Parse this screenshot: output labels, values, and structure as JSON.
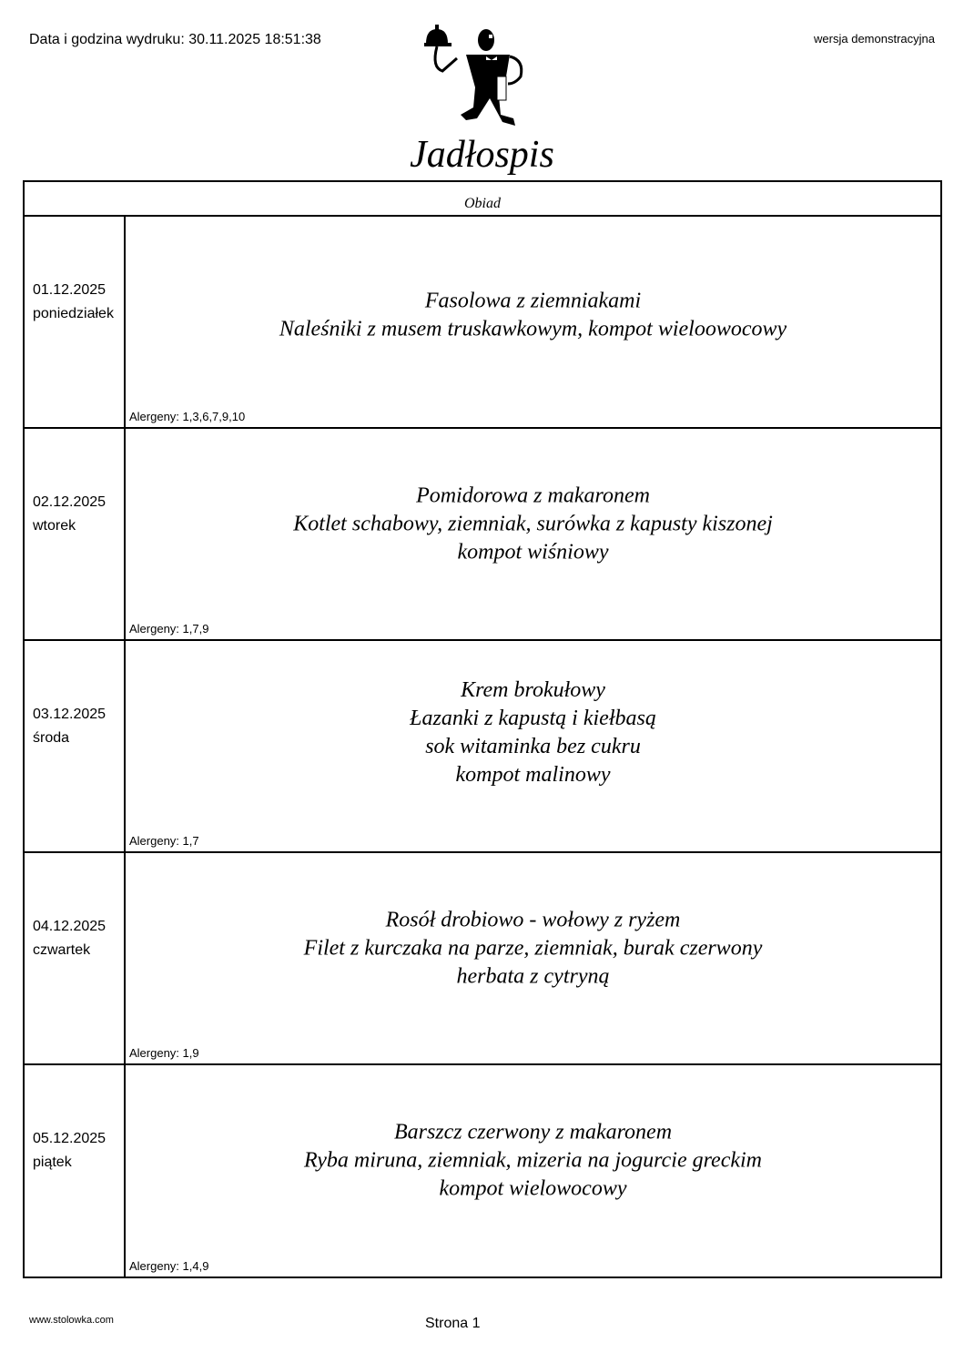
{
  "header": {
    "print_date": "Data i godzina wydruku: 30.11.2025 18:51:38",
    "version": "wersja demonstracyjna",
    "logo": "waiter-logo",
    "title": "Jadłospis"
  },
  "table": {
    "column_header": "Obiad",
    "rows": [
      {
        "date": "01.12.2025",
        "day": "poniedziałek",
        "menu": [
          "Fasolowa z ziemniakami",
          "Naleśniki z musem truskawkowym, kompot wieloowocowy"
        ],
        "allergens": "Alergeny: 1,3,6,7,9,10"
      },
      {
        "date": "02.12.2025",
        "day": "wtorek",
        "menu": [
          "Pomidorowa z makaronem",
          "Kotlet schabowy, ziemniak, surówka z kapusty kiszonej",
          "kompot wiśniowy"
        ],
        "allergens": "Alergeny: 1,7,9"
      },
      {
        "date": "03.12.2025",
        "day": "środa",
        "menu": [
          "Krem brokułowy",
          "Łazanki z kapustą i kiełbasą",
          "sok witaminka bez cukru",
          "kompot malinowy"
        ],
        "allergens": "Alergeny: 1,7"
      },
      {
        "date": "04.12.2025",
        "day": "czwartek",
        "menu": [
          "Rosół drobiowo - wołowy z ryżem",
          "Filet z kurczaka na parze, ziemniak, burak czerwony",
          "herbata z cytryną"
        ],
        "allergens": "Alergeny: 1,9"
      },
      {
        "date": "05.12.2025",
        "day": "piątek",
        "menu": [
          "Barszcz czerwony z makaronem",
          "Ryba miruna, ziemniak, mizeria na jogurcie greckim",
          "kompot wielowocowy"
        ],
        "allergens": "Alergeny: 1,4,9"
      }
    ]
  },
  "footer": {
    "url": "www.stolowka.com",
    "page": "Strona 1"
  }
}
